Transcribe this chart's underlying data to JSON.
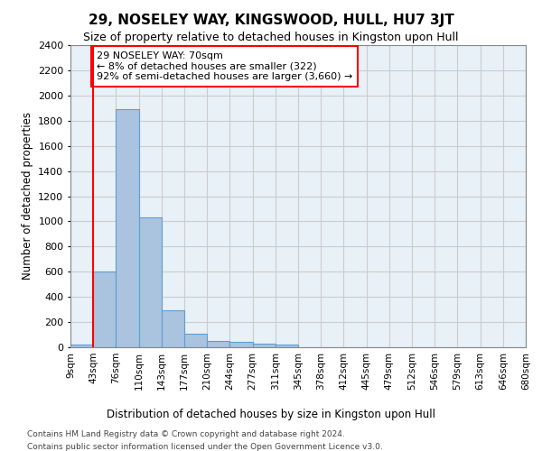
{
  "title": "29, NOSELEY WAY, KINGSWOOD, HULL, HU7 3JT",
  "subtitle": "Size of property relative to detached houses in Kingston upon Hull",
  "xlabel_bottom": "Distribution of detached houses by size in Kingston upon Hull",
  "ylabel": "Number of detached properties",
  "footnote1": "Contains HM Land Registry data © Crown copyright and database right 2024.",
  "footnote2": "Contains public sector information licensed under the Open Government Licence v3.0.",
  "bin_labels": [
    "9sqm",
    "43sqm",
    "76sqm",
    "110sqm",
    "143sqm",
    "177sqm",
    "210sqm",
    "244sqm",
    "277sqm",
    "311sqm",
    "345sqm",
    "378sqm",
    "412sqm",
    "445sqm",
    "479sqm",
    "512sqm",
    "546sqm",
    "579sqm",
    "613sqm",
    "646sqm",
    "680sqm"
  ],
  "bar_values": [
    20,
    600,
    1890,
    1035,
    295,
    110,
    50,
    45,
    30,
    20,
    0,
    0,
    0,
    0,
    0,
    0,
    0,
    0,
    0,
    0
  ],
  "bar_color": "#aac4e0",
  "bar_edge_color": "#5a9fd4",
  "grid_color": "#cccccc",
  "background_color": "#e8f0f8",
  "annotation_text": "29 NOSELEY WAY: 70sqm\n← 8% of detached houses are smaller (322)\n92% of semi-detached houses are larger (3,660) →",
  "annotation_box_color": "white",
  "annotation_box_edge": "red",
  "red_line_x": 1,
  "ylim": [
    0,
    2400
  ],
  "yticks": [
    0,
    200,
    400,
    600,
    800,
    1000,
    1200,
    1400,
    1600,
    1800,
    2000,
    2200,
    2400
  ]
}
